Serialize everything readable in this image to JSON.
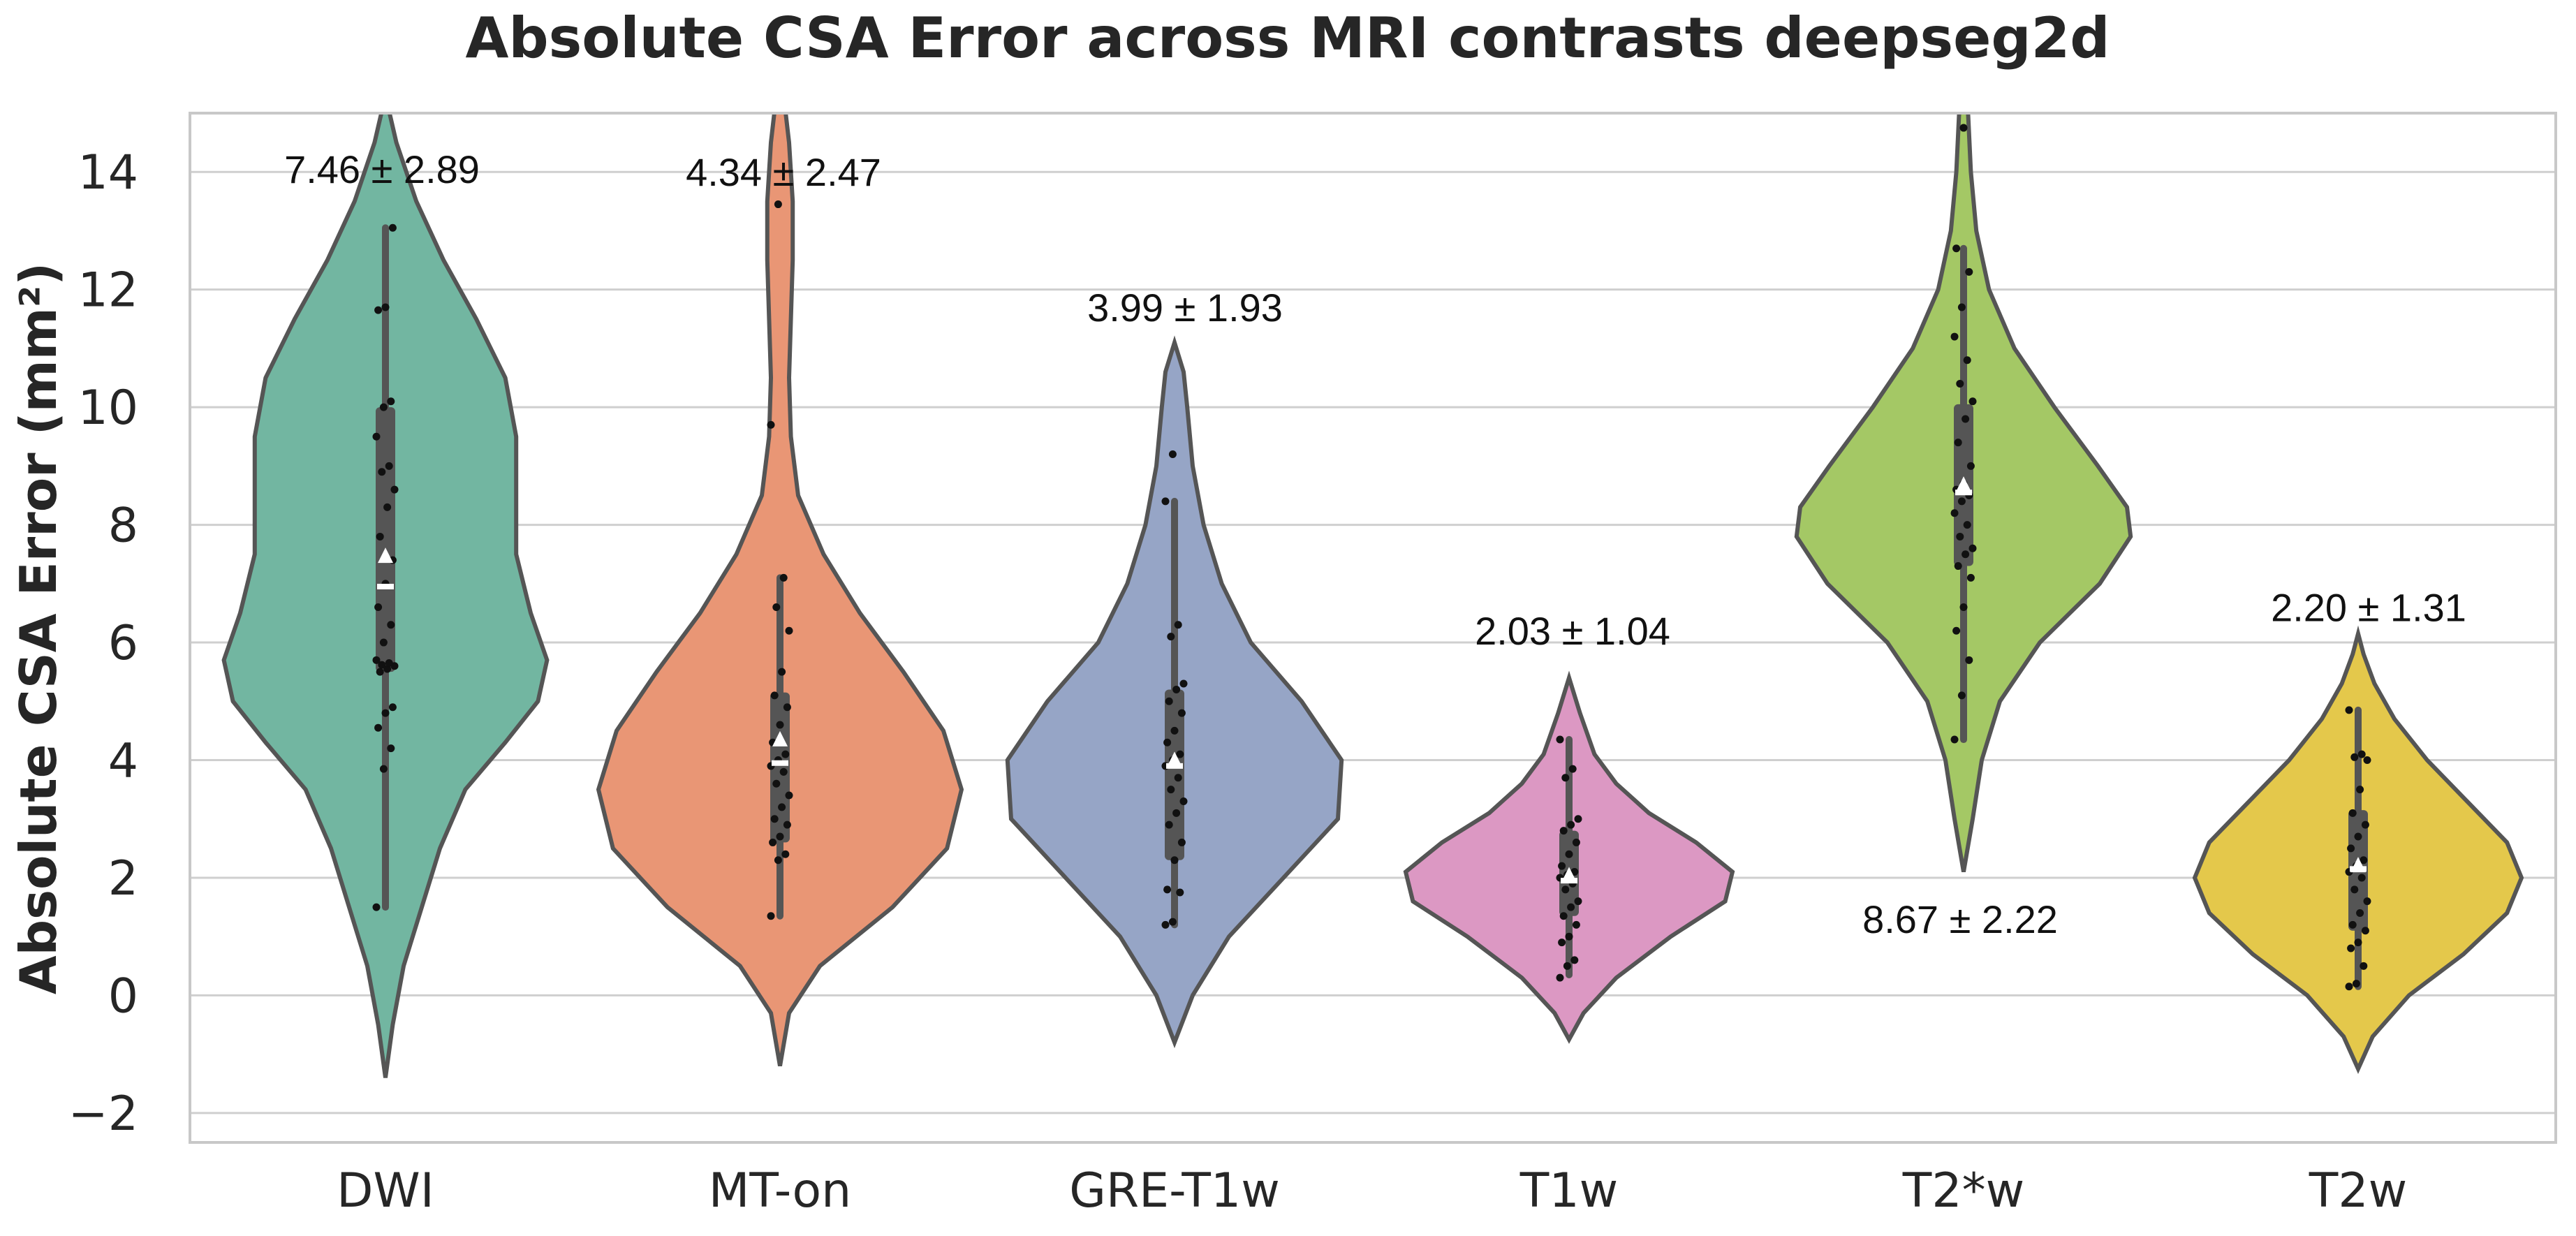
{
  "chart_data": {
    "type": "violin",
    "title": "Absolute CSA Error across MRI contrasts deepseg2d",
    "ylabel": "Absolute CSA Error (mm²)",
    "xlabel": "",
    "ylim": [
      -2.5,
      15
    ],
    "yticks": [
      -2,
      0,
      2,
      4,
      6,
      8,
      10,
      12,
      14
    ],
    "ytick_labels": [
      "−2",
      "0",
      "2",
      "4",
      "6",
      "8",
      "10",
      "12",
      "14"
    ],
    "grid": true,
    "categories": [
      "DWI",
      "MT-on",
      "GRE-T1w",
      "T1w",
      "T2*w",
      "T2w"
    ],
    "groups": [
      {
        "name": "DWI",
        "color": "#72b6a1",
        "mean": 7.46,
        "sd": 2.89,
        "annotation": "7.46 ± 2.89",
        "median": 6.95,
        "q1": 5.5,
        "q3": 10.0,
        "whisker_low": 1.5,
        "whisker_high": 13.05,
        "violin_min": -1.4,
        "violin_max": 15.3,
        "profile": [
          [
            -1.4,
            0.0
          ],
          [
            -0.5,
            0.04
          ],
          [
            0.5,
            0.1
          ],
          [
            1.5,
            0.2
          ],
          [
            2.5,
            0.3
          ],
          [
            3.5,
            0.44
          ],
          [
            4.3,
            0.66
          ],
          [
            5.0,
            0.84
          ],
          [
            5.7,
            0.89
          ],
          [
            6.5,
            0.8
          ],
          [
            7.5,
            0.72
          ],
          [
            8.5,
            0.72
          ],
          [
            9.5,
            0.72
          ],
          [
            10.5,
            0.66
          ],
          [
            11.5,
            0.5
          ],
          [
            12.5,
            0.32
          ],
          [
            13.5,
            0.17
          ],
          [
            14.5,
            0.06
          ],
          [
            15.3,
            0.0
          ]
        ],
        "points": [
          1.5,
          3.85,
          4.2,
          4.55,
          4.8,
          4.9,
          5.5,
          5.55,
          5.6,
          5.62,
          5.65,
          5.7,
          6.0,
          6.3,
          6.6,
          7.0,
          7.4,
          7.8,
          8.3,
          8.6,
          8.9,
          9.0,
          9.5,
          10.0,
          10.1,
          11.65,
          11.7,
          13.05
        ]
      },
      {
        "name": "MT-on",
        "color": "#e99675",
        "mean": 4.34,
        "sd": 2.47,
        "annotation": "4.34 ± 2.47",
        "median": 3.95,
        "q1": 2.6,
        "q3": 5.15,
        "whisker_low": 1.35,
        "whisker_high": 7.1,
        "violin_min": -1.2,
        "violin_max": 15.3,
        "profile": [
          [
            -1.2,
            0.0
          ],
          [
            -0.3,
            0.05
          ],
          [
            0.5,
            0.22
          ],
          [
            1.5,
            0.62
          ],
          [
            2.5,
            0.92
          ],
          [
            3.5,
            1.0
          ],
          [
            4.5,
            0.9
          ],
          [
            5.5,
            0.68
          ],
          [
            6.5,
            0.44
          ],
          [
            7.5,
            0.24
          ],
          [
            8.5,
            0.1
          ],
          [
            9.5,
            0.06
          ],
          [
            10.5,
            0.05
          ],
          [
            11.5,
            0.06
          ],
          [
            12.5,
            0.07
          ],
          [
            13.5,
            0.07
          ],
          [
            14.5,
            0.05
          ],
          [
            15.3,
            0.02
          ]
        ],
        "points": [
          1.35,
          2.3,
          2.4,
          2.6,
          2.7,
          2.9,
          3.0,
          3.2,
          3.4,
          3.6,
          3.8,
          3.9,
          4.0,
          4.1,
          4.3,
          4.6,
          4.9,
          5.1,
          5.5,
          6.2,
          6.6,
          7.1,
          9.7,
          13.45
        ]
      },
      {
        "name": "GRE-T1w",
        "color": "#96a5c6",
        "mean": 3.99,
        "sd": 1.93,
        "annotation": "3.99 ± 1.93",
        "median": 3.9,
        "q1": 2.3,
        "q3": 5.2,
        "whisker_low": 1.2,
        "whisker_high": 8.4,
        "violin_min": -0.8,
        "violin_max": 11.1,
        "profile": [
          [
            -0.8,
            0.0
          ],
          [
            0.0,
            0.1
          ],
          [
            1.0,
            0.3
          ],
          [
            2.0,
            0.6
          ],
          [
            3.0,
            0.9
          ],
          [
            4.0,
            0.92
          ],
          [
            5.0,
            0.7
          ],
          [
            6.0,
            0.42
          ],
          [
            7.0,
            0.26
          ],
          [
            8.0,
            0.16
          ],
          [
            9.0,
            0.1
          ],
          [
            10.0,
            0.07
          ],
          [
            10.6,
            0.05
          ],
          [
            11.1,
            0.0
          ]
        ],
        "points": [
          1.2,
          1.25,
          1.75,
          1.8,
          2.3,
          2.6,
          2.9,
          3.1,
          3.3,
          3.5,
          3.7,
          3.9,
          4.0,
          4.1,
          4.3,
          4.5,
          4.8,
          5.0,
          5.2,
          5.3,
          6.1,
          6.3,
          8.4,
          9.2
        ]
      },
      {
        "name": "T1w",
        "color": "#dc98c3",
        "mean": 2.03,
        "sd": 1.04,
        "annotation": "2.03 ± 1.04",
        "median": 1.95,
        "q1": 1.35,
        "q3": 2.8,
        "whisker_low": 0.35,
        "whisker_high": 4.35,
        "violin_min": -0.75,
        "violin_max": 5.4,
        "profile": [
          [
            -0.75,
            0.0
          ],
          [
            -0.3,
            0.08
          ],
          [
            0.3,
            0.26
          ],
          [
            1.0,
            0.56
          ],
          [
            1.6,
            0.86
          ],
          [
            2.1,
            0.9
          ],
          [
            2.6,
            0.7
          ],
          [
            3.1,
            0.44
          ],
          [
            3.6,
            0.26
          ],
          [
            4.1,
            0.14
          ],
          [
            4.8,
            0.06
          ],
          [
            5.4,
            0.0
          ]
        ],
        "points": [
          0.3,
          0.5,
          0.6,
          0.9,
          1.0,
          1.2,
          1.35,
          1.5,
          1.6,
          1.8,
          1.9,
          2.0,
          2.05,
          2.1,
          2.2,
          2.4,
          2.6,
          2.8,
          2.9,
          3.0,
          3.7,
          3.85,
          4.35
        ]
      },
      {
        "name": "T2*w",
        "color": "#a4c865",
        "mean": 8.67,
        "sd": 2.22,
        "annotation": "8.67 ± 2.22",
        "median": 8.55,
        "q1": 7.3,
        "q3": 10.05,
        "whisker_low": 4.35,
        "whisker_high": 12.7,
        "violin_min": 2.1,
        "violin_max": 15.3,
        "profile": [
          [
            2.1,
            0.0
          ],
          [
            3.0,
            0.05
          ],
          [
            4.0,
            0.1
          ],
          [
            5.0,
            0.2
          ],
          [
            6.0,
            0.42
          ],
          [
            7.0,
            0.75
          ],
          [
            7.8,
            0.92
          ],
          [
            8.3,
            0.9
          ],
          [
            9.0,
            0.74
          ],
          [
            10.0,
            0.5
          ],
          [
            11.0,
            0.28
          ],
          [
            12.0,
            0.14
          ],
          [
            13.0,
            0.07
          ],
          [
            14.0,
            0.04
          ],
          [
            15.3,
            0.02
          ]
        ],
        "points": [
          4.35,
          5.1,
          5.7,
          6.2,
          6.6,
          7.1,
          7.3,
          7.5,
          7.6,
          7.8,
          8.0,
          8.2,
          8.4,
          8.5,
          8.6,
          8.7,
          9.0,
          9.4,
          9.8,
          10.1,
          10.4,
          10.8,
          11.2,
          11.7,
          12.3,
          12.7,
          14.75
        ]
      },
      {
        "name": "T2w",
        "color": "#e4c84b",
        "mean": 2.2,
        "sd": 1.31,
        "annotation": "2.20 ± 1.31",
        "median": 2.15,
        "q1": 1.1,
        "q3": 3.15,
        "whisker_low": 0.15,
        "whisker_high": 4.85,
        "violin_min": -1.25,
        "violin_max": 6.15,
        "profile": [
          [
            -1.25,
            0.0
          ],
          [
            -0.7,
            0.08
          ],
          [
            0.0,
            0.28
          ],
          [
            0.7,
            0.58
          ],
          [
            1.4,
            0.82
          ],
          [
            2.0,
            0.9
          ],
          [
            2.6,
            0.82
          ],
          [
            3.3,
            0.6
          ],
          [
            4.0,
            0.38
          ],
          [
            4.7,
            0.2
          ],
          [
            5.3,
            0.09
          ],
          [
            5.8,
            0.03
          ],
          [
            6.15,
            0.0
          ]
        ],
        "points": [
          0.15,
          0.2,
          0.5,
          0.8,
          0.9,
          1.1,
          1.2,
          1.4,
          1.6,
          1.8,
          2.0,
          2.1,
          2.2,
          2.3,
          2.5,
          2.7,
          2.9,
          3.1,
          3.5,
          4.0,
          4.05,
          4.1,
          4.85
        ]
      }
    ]
  }
}
